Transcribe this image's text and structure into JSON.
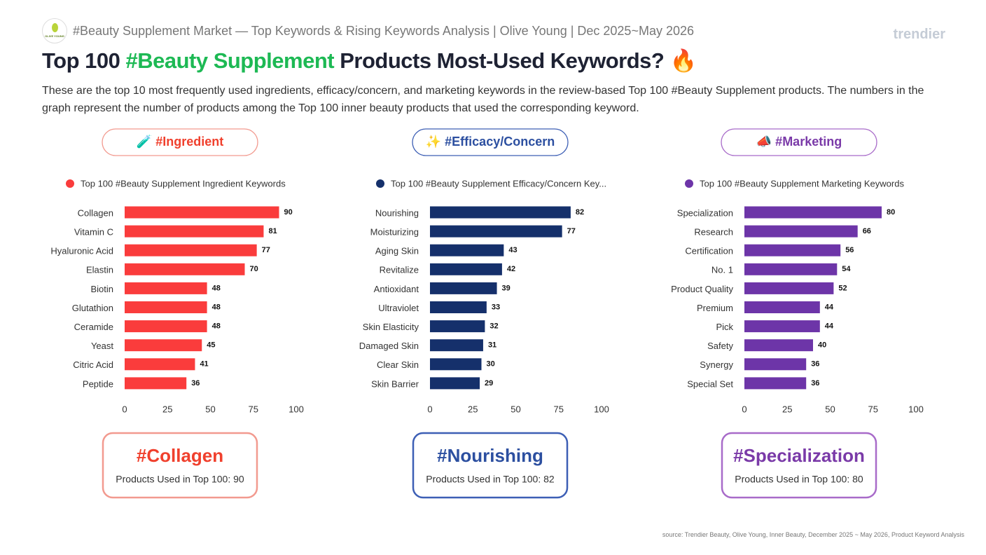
{
  "header": {
    "logo_text": "OLIVE YOUNG",
    "breadcrumb": "#Beauty Supplement Market — Top Keywords & Rising Keywords Analysis | Olive Young | Dec 2025~May 2026",
    "brand": "trendier",
    "title_pre": "Top 100 ",
    "title_highlight": "#Beauty Supplement",
    "title_post": " Products Most-Used Keywords?",
    "title_emoji": "🔥",
    "description": "These are the top 10 most frequently used ingredients, efficacy/concern, and marketing keywords in the review-based Top 100 #Beauty Supplement products. The numbers in the graph represent the number of products among the Top 100 inner beauty products that used the corresponding keyword."
  },
  "chart_data": [
    {
      "type": "bar",
      "orientation": "horizontal",
      "section_label": "🧪 #Ingredient",
      "accent": "#f0402d",
      "categories": [
        "Collagen",
        "Vitamin C",
        "Hyaluronic Acid",
        "Elastin",
        "Biotin",
        "Glutathion",
        "Ceramide",
        "Yeast",
        "Citric Acid",
        "Peptide"
      ],
      "series": [
        {
          "name": "Top 100 #Beauty Supplement Ingredient Keywords",
          "color": "#fa3c3c",
          "values": [
            90,
            81,
            77,
            70,
            48,
            48,
            48,
            45,
            41,
            36
          ]
        }
      ],
      "xlim": [
        0,
        100
      ],
      "xticks": [
        0,
        25,
        50,
        75,
        100
      ],
      "highlight": {
        "title": "#Collagen",
        "text": "Products Used in Top 100: 90"
      }
    },
    {
      "type": "bar",
      "orientation": "horizontal",
      "section_label": "✨ #Efficacy/Concern",
      "accent": "#2c4fa0",
      "categories": [
        "Nourishing",
        "Moisturizing",
        "Aging Skin",
        "Revitalize",
        "Antioxidant",
        "Ultraviolet",
        "Skin Elasticity",
        "Damaged Skin",
        "Clear Skin",
        "Skin Barrier"
      ],
      "series": [
        {
          "name": "Top 100 #Beauty Supplement Efficacy/Concern Key...",
          "color": "#15306b",
          "values": [
            82,
            77,
            43,
            42,
            39,
            33,
            32,
            31,
            30,
            29
          ]
        }
      ],
      "xlim": [
        0,
        100
      ],
      "xticks": [
        0,
        25,
        50,
        75,
        100
      ],
      "highlight": {
        "title": "#Nourishing",
        "text": "Products Used in Top 100: 82"
      }
    },
    {
      "type": "bar",
      "orientation": "horizontal",
      "section_label": "📣 #Marketing",
      "accent": "#7a3aa8",
      "categories": [
        "Specialization",
        "Research",
        "Certification",
        "No. 1",
        "Product Quality",
        "Premium",
        "Pick",
        "Safety",
        "Synergy",
        "Special Set"
      ],
      "series": [
        {
          "name": "Top 100 #Beauty Supplement Marketing Keywords",
          "color": "#6d35a8",
          "values": [
            80,
            66,
            56,
            54,
            52,
            44,
            44,
            40,
            36,
            36
          ]
        }
      ],
      "xlim": [
        0,
        100
      ],
      "xticks": [
        0,
        25,
        50,
        75,
        100
      ],
      "highlight": {
        "title": "#Specialization",
        "text": "Products Used in Top 100: 80"
      }
    }
  ],
  "source": "source: Trendier Beauty, Olive Young, Inner Beauty, December 2025 ~ May 2026, Product Keyword Analysis"
}
